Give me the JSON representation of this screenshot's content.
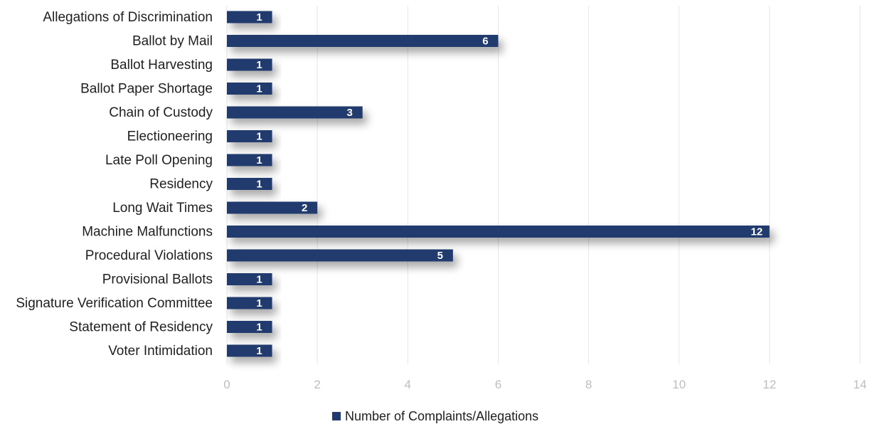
{
  "chart_data": {
    "type": "bar",
    "orientation": "horizontal",
    "categories": [
      "Allegations of Discrimination",
      "Ballot by Mail",
      "Ballot Harvesting",
      "Ballot Paper Shortage",
      "Chain of Custody",
      "Electioneering",
      "Late Poll Opening",
      "Residency",
      "Long Wait Times",
      "Machine Malfunctions",
      "Procedural Violations",
      "Provisional Ballots",
      "Signature Verification Committee",
      "Statement of Residency",
      "Voter Intimidation"
    ],
    "series": [
      {
        "name": "Number of Complaints/Allegations",
        "values": [
          1,
          6,
          1,
          1,
          3,
          1,
          1,
          1,
          2,
          12,
          5,
          1,
          1,
          1,
          1
        ]
      }
    ],
    "xlim": [
      0,
      14
    ],
    "xticks": [
      0,
      2,
      4,
      6,
      8,
      10,
      12,
      14
    ],
    "grid": "vertical",
    "legend_position": "bottom",
    "data_labels": true,
    "colors": {
      "bar": "#223a6e",
      "grid": "#e6e6e6",
      "tick_text": "#bdbdbd",
      "label_text": "#1f1f1f",
      "data_label_text": "#ffffff"
    }
  }
}
